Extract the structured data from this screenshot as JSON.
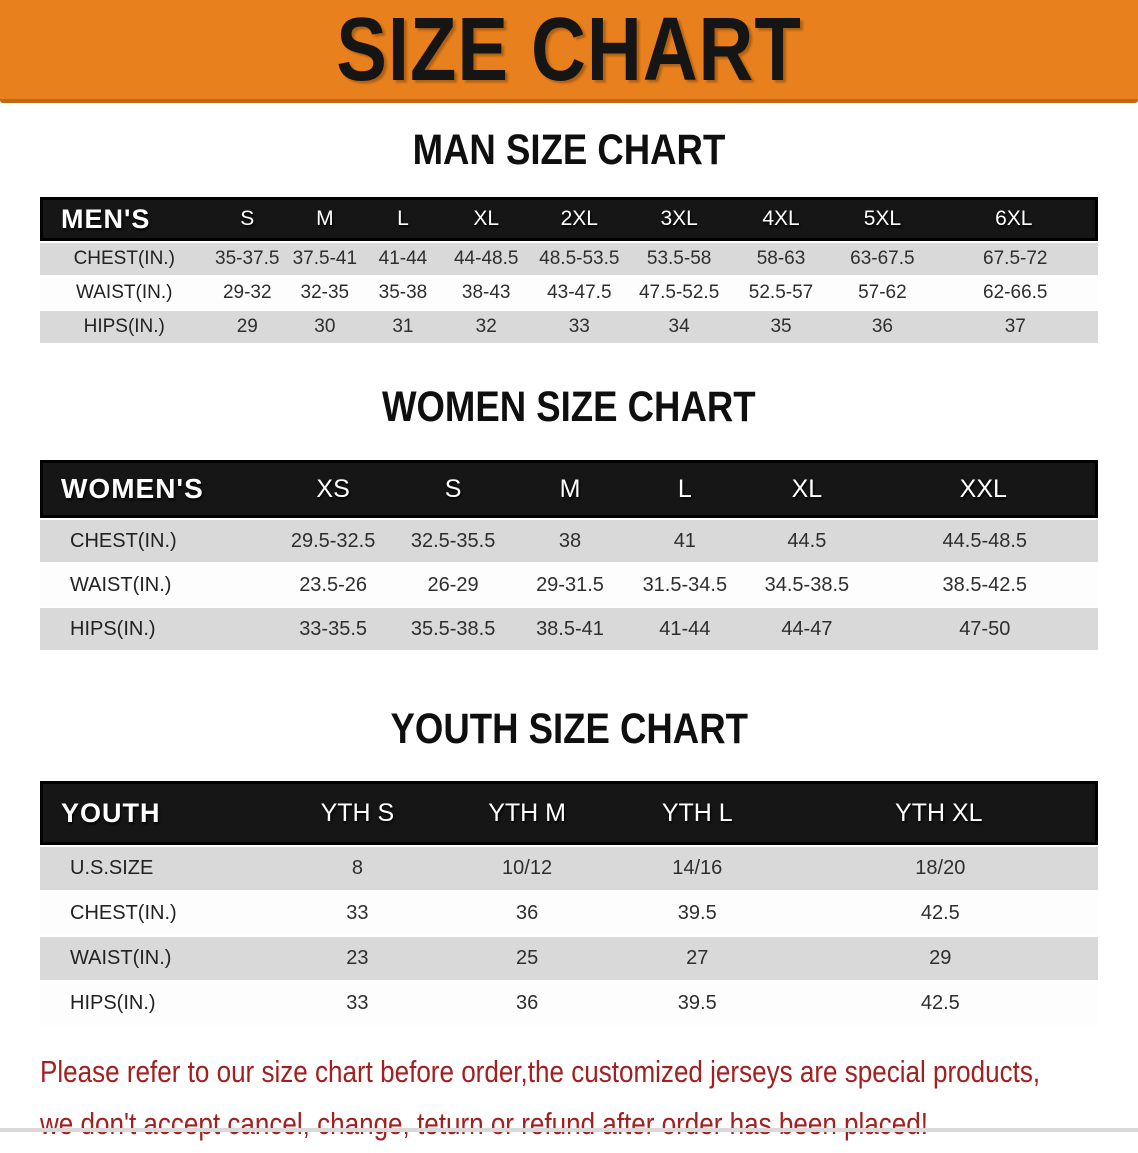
{
  "banner": {
    "title": "SIZE CHART"
  },
  "colors": {
    "banner_orange": "#e8811d",
    "banner_edge": "#c06712",
    "header_black": "#161616",
    "stripe_gray": "#d9d9d9",
    "disclaimer_red": "#a32020"
  },
  "sections": [
    {
      "id": "men",
      "title": "MAN SIZE CHART",
      "table": {
        "header_label": "MEN'S",
        "sizes": [
          "S",
          "M",
          "L",
          "XL",
          "2XL",
          "3XL",
          "4XL",
          "5XL",
          "6XL"
        ],
        "rows": [
          {
            "label": "CHEST(IN.)",
            "values": [
              "35-37.5",
              "37.5-41",
              "41-44",
              "44-48.5",
              "48.5-53.5",
              "53.5-58",
              "58-63",
              "63-67.5",
              "67.5-72"
            ]
          },
          {
            "label": "WAIST(IN.)",
            "values": [
              "29-32",
              "32-35",
              "35-38",
              "38-43",
              "43-47.5",
              "47.5-52.5",
              "52.5-57",
              "57-62",
              "62-66.5"
            ]
          },
          {
            "label": "HIPS(IN.)",
            "values": [
              "29",
              "30",
              "31",
              "32",
              "33",
              "34",
              "35",
              "36",
              "37"
            ]
          }
        ]
      }
    },
    {
      "id": "women",
      "title": "WOMEN SIZE CHART",
      "table": {
        "header_label": "WOMEN'S",
        "sizes": [
          "XS",
          "S",
          "M",
          "L",
          "XL",
          "XXL"
        ],
        "rows": [
          {
            "label": "CHEST(IN.)",
            "values": [
              "29.5-32.5",
              "32.5-35.5",
              "38",
              "41",
              "44.5",
              "44.5-48.5"
            ]
          },
          {
            "label": "WAIST(IN.)",
            "values": [
              "23.5-26",
              "26-29",
              "29-31.5",
              "31.5-34.5",
              "34.5-38.5",
              "38.5-42.5"
            ]
          },
          {
            "label": "HIPS(IN.)",
            "values": [
              "33-35.5",
              "35.5-38.5",
              "38.5-41",
              "41-44",
              "44-47",
              "47-50"
            ]
          }
        ]
      }
    },
    {
      "id": "youth",
      "title": "YOUTH SIZE CHART",
      "table": {
        "header_label": "YOUTH",
        "sizes": [
          "YTH S",
          "YTH M",
          "YTH L",
          "YTH XL"
        ],
        "rows": [
          {
            "label": "U.S.SIZE",
            "values": [
              "8",
              "10/12",
              "14/16",
              "18/20"
            ]
          },
          {
            "label": "CHEST(IN.)",
            "values": [
              "33",
              "36",
              "39.5",
              "42.5"
            ]
          },
          {
            "label": "WAIST(IN.)",
            "values": [
              "23",
              "25",
              "27",
              "29"
            ]
          },
          {
            "label": "HIPS(IN.)",
            "values": [
              "33",
              "36",
              "39.5",
              "42.5"
            ]
          }
        ]
      }
    }
  ],
  "disclaimer": {
    "line1": "Please refer to our size chart before order,the customized jerseys are special products,",
    "line2": "we don't accept cancel, change, teturn or refund after order has been placed!"
  }
}
